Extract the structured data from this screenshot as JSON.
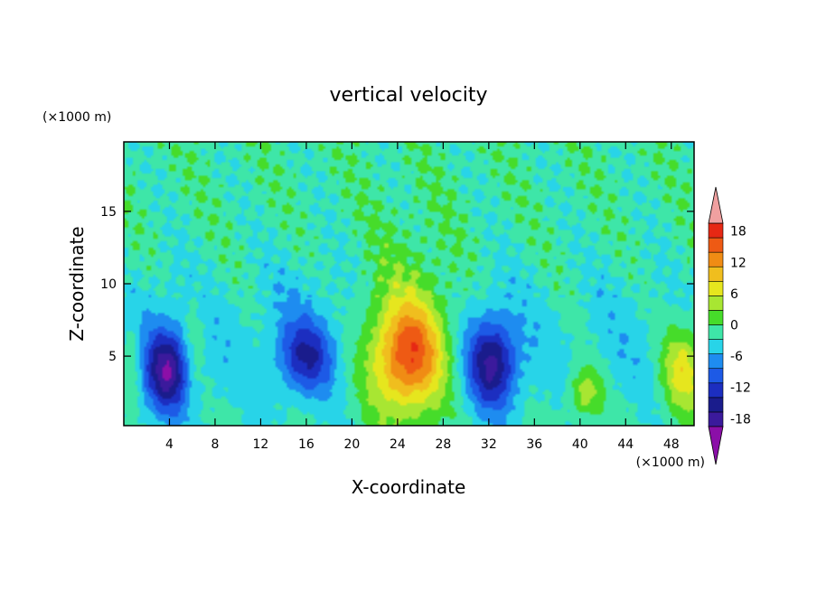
{
  "chart_data": {
    "type": "heatmap",
    "title": "vertical velocity",
    "xlabel": "X-coordinate",
    "ylabel": "Z-coordinate",
    "x_unit": "(×1000 m)",
    "y_unit": "(×1000 m)",
    "xlim": [
      0,
      50
    ],
    "ylim": [
      0.2,
      19.8
    ],
    "x_ticks": [
      4,
      8,
      12,
      16,
      20,
      24,
      28,
      32,
      36,
      40,
      44,
      48
    ],
    "y_ticks": [
      5,
      10,
      15
    ],
    "colorbar": {
      "ticks": [
        18,
        12,
        6,
        0,
        -6,
        -12,
        -18
      ],
      "levels": [
        -21,
        -19.5,
        -16.5,
        -13.5,
        -10.5,
        -7.5,
        -4.5,
        -1.5,
        1.5,
        4.5,
        7.5,
        10.5,
        13.5,
        16.5,
        19.5,
        21
      ],
      "colors": [
        "#8b0fa8",
        "#3b1a9c",
        "#1a1c8c",
        "#1c2ec0",
        "#1d5ae6",
        "#1e8cf0",
        "#28d4e8",
        "#3ee6a8",
        "#46dc2a",
        "#a8e632",
        "#e6e61e",
        "#f0be1e",
        "#f08c14",
        "#ee5a14",
        "#e62814",
        "#f0a0a0"
      ],
      "extend": "both"
    },
    "features": [
      {
        "x": 3.8,
        "z": 4.0,
        "w": -14,
        "sx": 1.2,
        "sz": 1.8
      },
      {
        "x": 16.0,
        "z": 5.0,
        "w": -9,
        "sx": 1.6,
        "sz": 1.6
      },
      {
        "x": 32.3,
        "z": 4.5,
        "w": -13,
        "sx": 1.4,
        "sz": 2.0
      },
      {
        "x": 25.0,
        "z": 5.0,
        "w": 17,
        "sx": 2.2,
        "sz": 2.6
      },
      {
        "x": 40.5,
        "z": 2.5,
        "w": 8,
        "sx": 1.0,
        "sz": 1.2
      },
      {
        "x": 49.0,
        "z": 4.0,
        "w": 10,
        "sx": 1.3,
        "sz": 2.0
      },
      {
        "x": 6.2,
        "z": 6.0,
        "w": 4,
        "sx": 0.8,
        "sz": 2.5
      },
      {
        "x": 0.8,
        "z": 5.0,
        "w": 4,
        "sx": 0.6,
        "sz": 2.0
      }
    ]
  }
}
